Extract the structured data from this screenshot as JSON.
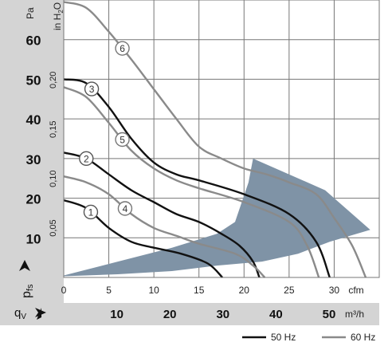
{
  "chart_data": {
    "type": "line",
    "x_unit_primary": "cfm",
    "x_unit_secondary": "m³/h",
    "y_unit_primary": "Pa",
    "y_unit_secondary": "in H2O",
    "y_unit_secondary_parts": {
      "main": "in H",
      "sub": "2",
      "tail": "O"
    },
    "y_axis_label": {
      "main": "p",
      "sub": "fs"
    },
    "x_axis_label": {
      "main": "q",
      "sub": "V"
    },
    "xlim_cfm": [
      0,
      35
    ],
    "ylim_pa": [
      0,
      70
    ],
    "cfm_ticks": [
      "0",
      "5",
      "10",
      "15",
      "20",
      "25",
      "30",
      "cfm"
    ],
    "pa_ticks": [
      "10",
      "20",
      "30",
      "40",
      "50",
      "60"
    ],
    "inh2o_ticks": [
      "0,05",
      "0,10",
      "0,15",
      "0,20"
    ],
    "m3h_ticks": [
      "10",
      "20",
      "30",
      "40",
      "50"
    ],
    "grid": true,
    "legend": {
      "placement": "bottom-right",
      "items": [
        {
          "label": "50 Hz",
          "color": "#111111"
        },
        {
          "label": "60 Hz",
          "color": "#8a8a8a"
        }
      ]
    },
    "operating_region": {
      "color": "#7f93a6",
      "points": [
        [
          0,
          0.5
        ],
        [
          6,
          4
        ],
        [
          12,
          7.5
        ],
        [
          17,
          11
        ],
        [
          19,
          14
        ],
        [
          20.5,
          24
        ],
        [
          21,
          30
        ],
        [
          25,
          26
        ],
        [
          29,
          22
        ],
        [
          34,
          12
        ],
        [
          29.5,
          9
        ],
        [
          26,
          6
        ],
        [
          22,
          4
        ],
        [
          17,
          3
        ],
        [
          12,
          1.6
        ],
        [
          6,
          0.8
        ],
        [
          0,
          0.3
        ]
      ]
    },
    "series": [
      {
        "label": "1",
        "hz": "50 Hz",
        "color": "#111111",
        "points": [
          [
            0,
            19.5
          ],
          [
            2.5,
            17.5
          ],
          [
            5,
            12.5
          ],
          [
            7.5,
            9
          ],
          [
            10,
            7.5
          ],
          [
            13,
            6
          ],
          [
            16,
            3.5
          ],
          [
            17.6,
            0
          ]
        ]
      },
      {
        "label": "2",
        "hz": "50 Hz",
        "color": "#111111",
        "points": [
          [
            0,
            31.5
          ],
          [
            2.5,
            30
          ],
          [
            5,
            26
          ],
          [
            7.5,
            22
          ],
          [
            10,
            19
          ],
          [
            12.5,
            16
          ],
          [
            15,
            14
          ],
          [
            17.5,
            11
          ],
          [
            19.5,
            8
          ],
          [
            21,
            4
          ],
          [
            21.7,
            0
          ]
        ]
      },
      {
        "label": "3",
        "hz": "50 Hz",
        "color": "#111111",
        "points": [
          [
            0,
            50
          ],
          [
            2.5,
            49
          ],
          [
            5,
            43
          ],
          [
            7.5,
            35
          ],
          [
            10,
            29
          ],
          [
            12.5,
            26
          ],
          [
            15,
            24.5
          ],
          [
            20,
            21
          ],
          [
            25,
            16
          ],
          [
            28,
            9
          ],
          [
            29.5,
            0
          ]
        ]
      },
      {
        "label": "4",
        "hz": "60 Hz",
        "color": "#8a8a8a",
        "points": [
          [
            0,
            25.5
          ],
          [
            2.5,
            24
          ],
          [
            5,
            21
          ],
          [
            7.5,
            16
          ],
          [
            10,
            12.5
          ],
          [
            12.5,
            10.5
          ],
          [
            15,
            8.5
          ],
          [
            19,
            6
          ],
          [
            21,
            3
          ],
          [
            22.3,
            0
          ]
        ]
      },
      {
        "label": "5",
        "hz": "60 Hz",
        "color": "#8a8a8a",
        "points": [
          [
            0,
            48
          ],
          [
            2.5,
            45.5
          ],
          [
            5,
            39
          ],
          [
            7.5,
            32
          ],
          [
            10,
            27.5
          ],
          [
            12.5,
            24.5
          ],
          [
            15,
            22.5
          ],
          [
            20,
            19
          ],
          [
            25,
            14
          ],
          [
            27,
            8
          ],
          [
            28.3,
            0
          ]
        ]
      },
      {
        "label": "6",
        "hz": "60 Hz",
        "color": "#8a8a8a",
        "points": [
          [
            0,
            69.5
          ],
          [
            2.5,
            68
          ],
          [
            5,
            62
          ],
          [
            7.5,
            55
          ],
          [
            10,
            47.5
          ],
          [
            12.5,
            40
          ],
          [
            15,
            33
          ],
          [
            17.5,
            30
          ],
          [
            20,
            27.5
          ],
          [
            22.5,
            26
          ],
          [
            25,
            24
          ],
          [
            28,
            21
          ],
          [
            30,
            15
          ],
          [
            32,
            8
          ],
          [
            33.5,
            0
          ]
        ]
      }
    ]
  }
}
